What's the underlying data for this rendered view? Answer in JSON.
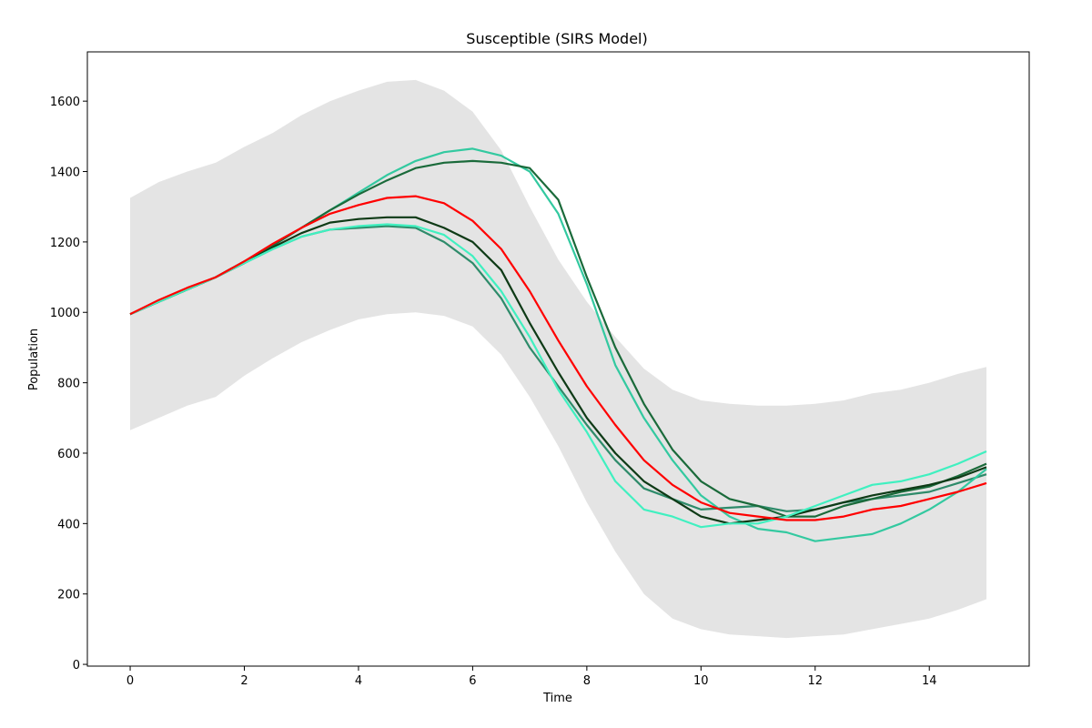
{
  "chart_data": {
    "type": "line",
    "title": "Susceptible (SIRS Model)",
    "xlabel": "Time",
    "ylabel": "Population",
    "xlim": [
      -0.75,
      15.75
    ],
    "ylim": [
      -5,
      1740
    ],
    "xticks": [
      0,
      2,
      4,
      6,
      8,
      10,
      12,
      14
    ],
    "yticks": [
      0,
      200,
      400,
      600,
      800,
      1000,
      1200,
      1400,
      1600
    ],
    "grid": false,
    "legend": "none",
    "band": {
      "color": "#d3d3d3",
      "x": [
        0,
        0.5,
        1,
        1.5,
        2,
        2.5,
        3,
        3.5,
        4,
        4.5,
        5,
        5.5,
        6,
        6.5,
        7,
        7.5,
        8,
        8.5,
        9,
        9.5,
        10,
        10.5,
        11,
        11.5,
        12,
        12.5,
        13,
        13.5,
        14,
        14.5,
        15
      ],
      "upper": [
        1325,
        1370,
        1400,
        1425,
        1470,
        1510,
        1560,
        1600,
        1630,
        1655,
        1660,
        1630,
        1570,
        1460,
        1300,
        1150,
        1030,
        930,
        840,
        780,
        750,
        740,
        735,
        735,
        740,
        750,
        770,
        780,
        800,
        825,
        845
      ],
      "lower": [
        665,
        700,
        735,
        760,
        820,
        870,
        915,
        950,
        980,
        995,
        1000,
        990,
        960,
        880,
        760,
        620,
        460,
        320,
        200,
        130,
        100,
        85,
        80,
        75,
        80,
        85,
        100,
        115,
        130,
        155,
        185
      ]
    },
    "x": [
      0,
      0.5,
      1,
      1.5,
      2,
      2.5,
      3,
      3.5,
      4,
      4.5,
      5,
      5.5,
      6,
      6.5,
      7,
      7.5,
      8,
      8.5,
      9,
      9.5,
      10,
      10.5,
      11,
      11.5,
      12,
      12.5,
      13,
      13.5,
      14,
      14.5,
      15
    ],
    "series": [
      {
        "color": "#2e8b6a",
        "values": [
          995,
          1030,
          1065,
          1100,
          1140,
          1180,
          1215,
          1235,
          1240,
          1245,
          1240,
          1200,
          1140,
          1040,
          900,
          790,
          680,
          580,
          500,
          470,
          440,
          445,
          450,
          435,
          440,
          460,
          470,
          480,
          490,
          515,
          540
        ]
      },
      {
        "color": "#33c9a0",
        "values": [
          995,
          1030,
          1065,
          1100,
          1145,
          1190,
          1240,
          1290,
          1340,
          1390,
          1430,
          1455,
          1465,
          1445,
          1400,
          1280,
          1080,
          850,
          700,
          580,
          480,
          420,
          385,
          375,
          350,
          360,
          370,
          400,
          440,
          490,
          555
        ]
      },
      {
        "color": "#1a6a3a",
        "values": [
          995,
          1030,
          1065,
          1100,
          1145,
          1190,
          1240,
          1290,
          1335,
          1375,
          1410,
          1425,
          1430,
          1425,
          1410,
          1320,
          1100,
          900,
          740,
          610,
          520,
          470,
          450,
          420,
          420,
          450,
          470,
          490,
          505,
          535,
          570
        ]
      },
      {
        "color": "#0e3a16",
        "values": [
          995,
          1030,
          1065,
          1100,
          1140,
          1185,
          1225,
          1255,
          1265,
          1270,
          1270,
          1240,
          1200,
          1120,
          970,
          830,
          700,
          600,
          520,
          470,
          420,
          400,
          410,
          420,
          440,
          460,
          480,
          495,
          510,
          530,
          560
        ]
      },
      {
        "color": "#40f0c0",
        "values": [
          995,
          1030,
          1065,
          1100,
          1140,
          1180,
          1215,
          1235,
          1245,
          1250,
          1245,
          1220,
          1160,
          1060,
          930,
          780,
          660,
          520,
          440,
          420,
          390,
          400,
          400,
          420,
          450,
          480,
          510,
          520,
          540,
          570,
          605
        ]
      },
      {
        "color": "#ff0000",
        "values": [
          995,
          1035,
          1070,
          1100,
          1145,
          1195,
          1240,
          1280,
          1305,
          1325,
          1330,
          1310,
          1260,
          1180,
          1060,
          920,
          790,
          680,
          580,
          510,
          460,
          430,
          420,
          410,
          410,
          420,
          440,
          450,
          470,
          490,
          515
        ]
      }
    ]
  }
}
